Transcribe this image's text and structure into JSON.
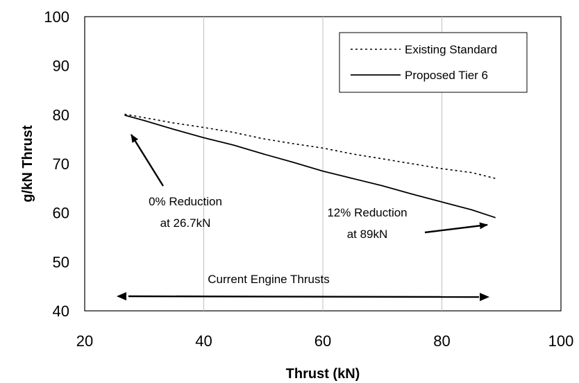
{
  "chart_data": {
    "type": "line",
    "title": "",
    "xlabel": "Thrust (kN)",
    "ylabel": "g/kN Thrust",
    "xlim": [
      20,
      100
    ],
    "ylim": [
      40,
      100
    ],
    "xticks": [
      20,
      40,
      60,
      80,
      100
    ],
    "yticks": [
      40,
      50,
      60,
      70,
      80,
      90,
      100
    ],
    "x_tick_labels": [
      "20",
      "40",
      "60",
      "80",
      "100"
    ],
    "y_tick_labels": [
      "40",
      "50",
      "60",
      "70",
      "80",
      "90",
      "100"
    ],
    "grid": "vertical",
    "legend_position": "top-right",
    "series": [
      {
        "name": "Existing Standard",
        "style": "dotted",
        "x": [
          26.7,
          30,
          35,
          40,
          45,
          50,
          55,
          60,
          65,
          70,
          75,
          80,
          85,
          89
        ],
        "y": [
          80.1,
          79.4,
          78.3,
          77.4,
          76.4,
          75.1,
          74.1,
          73.2,
          72.0,
          71.0,
          70.0,
          69.0,
          68.2,
          67.0
        ]
      },
      {
        "name": "Proposed Tier 6",
        "style": "solid",
        "x": [
          26.7,
          30,
          35,
          40,
          45,
          50,
          55,
          60,
          65,
          70,
          75,
          80,
          85,
          89
        ],
        "y": [
          79.9,
          78.8,
          77.0,
          75.3,
          73.8,
          72.0,
          70.3,
          68.5,
          67.0,
          65.5,
          63.8,
          62.2,
          60.6,
          59.0
        ]
      }
    ],
    "annotations": [
      {
        "text_lines": [
          "0% Reduction",
          "at 26.7kN"
        ]
      },
      {
        "text_lines": [
          "12% Reduction",
          "at 89kN"
        ]
      },
      {
        "text_lines": [
          "Current Engine Thrusts"
        ]
      }
    ]
  }
}
